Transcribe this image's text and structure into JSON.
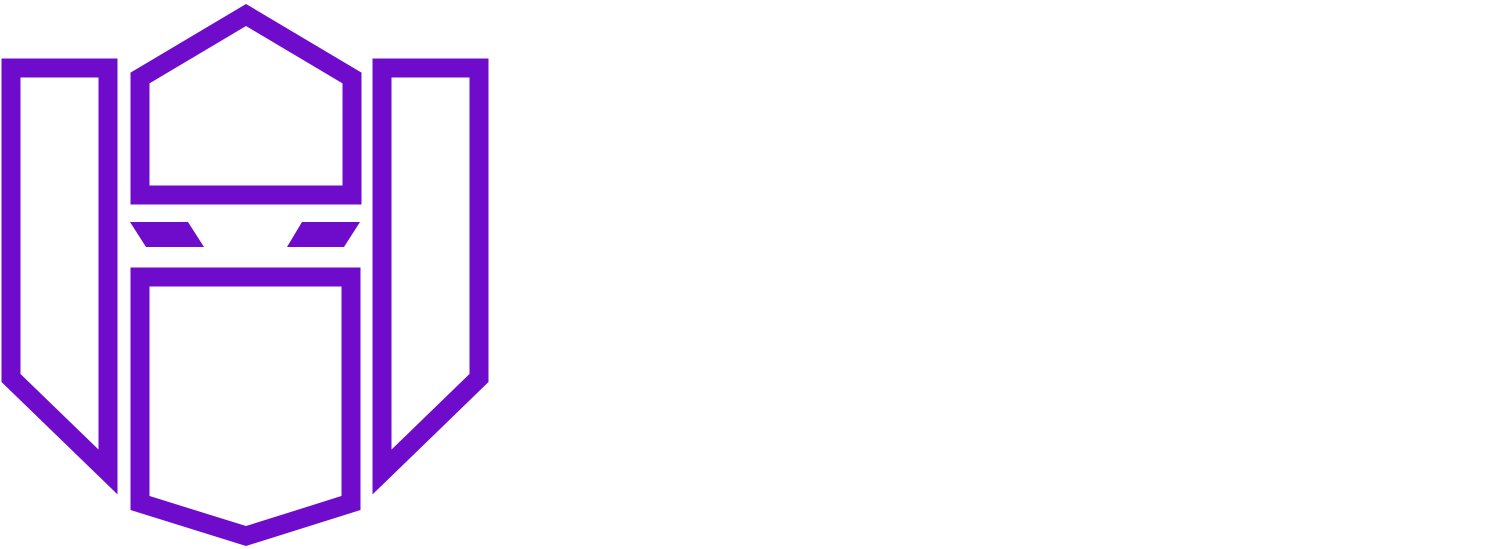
{
  "logo": {
    "icon": "helmet-shield-logo-icon",
    "color": "#6F0BCB"
  },
  "background_color": "#FFFFFF"
}
